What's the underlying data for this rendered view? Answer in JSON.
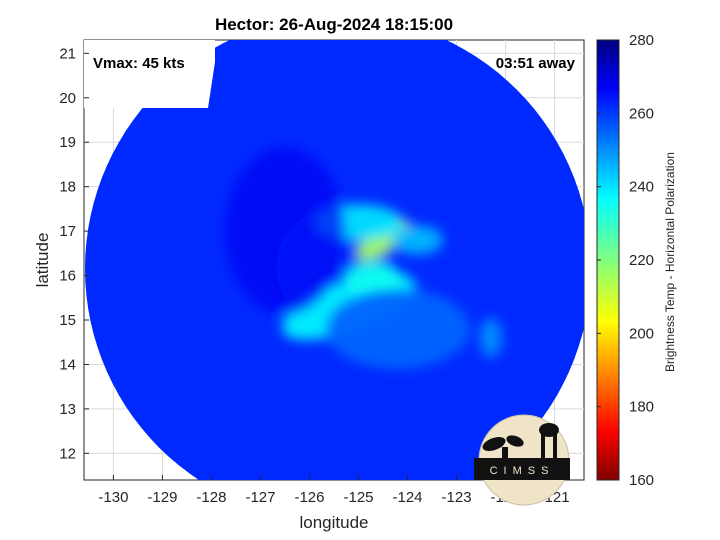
{
  "chart_data": {
    "type": "heatmap",
    "title": "Hector: 26-Aug-2024 18:15:00",
    "xlabel": "longitude",
    "ylabel": "latitude",
    "xlim": [
      -130.6,
      -120.4
    ],
    "ylim": [
      11.4,
      21.3
    ],
    "xticks": [
      -130,
      -129,
      -128,
      -127,
      -126,
      -125,
      -124,
      -123,
      -122,
      -121
    ],
    "yticks": [
      12,
      13,
      14,
      15,
      16,
      17,
      18,
      19,
      20,
      21
    ],
    "grid": true,
    "colorbar": {
      "label": "Brightness Temp - Horizontal Polarization",
      "range": [
        160,
        280
      ],
      "ticks": [
        160,
        180,
        200,
        220,
        240,
        260,
        280
      ]
    },
    "swath": {
      "center_lon": -125.5,
      "center_lat": 16.2,
      "background_value": 262,
      "features": [
        {
          "lon": -125.5,
          "lat": 16.2,
          "value": 262
        },
        {
          "lon": -124.5,
          "lat": 16.8,
          "value": 215
        },
        {
          "lon": -125.2,
          "lat": 15.3,
          "value": 238
        },
        {
          "lon": -124.7,
          "lat": 15.9,
          "value": 235
        },
        {
          "lon": -125.0,
          "lat": 17.2,
          "value": 240
        },
        {
          "lon": -123.8,
          "lat": 16.8,
          "value": 245
        },
        {
          "lon": -126.5,
          "lat": 17.0,
          "value": 268
        },
        {
          "lon": -122.3,
          "lat": 14.6,
          "value": 250
        },
        {
          "lon": -124.2,
          "lat": 14.8,
          "value": 255
        }
      ]
    },
    "annotations": {
      "vmax": "Vmax: 45 kts",
      "time_away": "03:51 away"
    }
  },
  "logo": {
    "text": "CIMSS"
  }
}
